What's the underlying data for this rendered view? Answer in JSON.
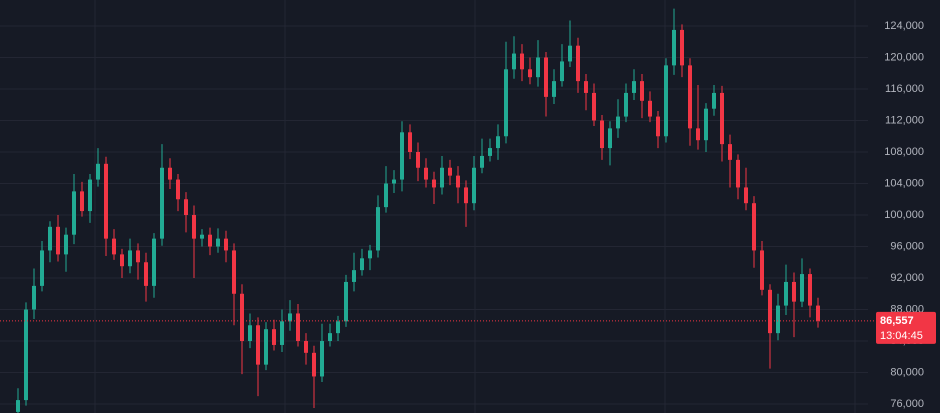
{
  "chart_data": {
    "type": "candlestick",
    "categories": [
      null,
      null,
      null,
      null,
      null,
      null,
      null,
      null,
      null,
      null,
      null,
      null,
      null,
      null,
      null,
      null,
      null,
      null,
      null,
      null,
      null,
      null,
      null,
      null,
      null,
      null,
      null,
      null,
      null,
      null,
      null,
      null,
      null,
      null,
      null,
      null,
      null,
      null,
      null,
      null,
      null,
      null,
      null,
      null,
      null,
      null,
      null,
      null,
      null,
      null,
      null,
      null,
      null,
      null,
      null,
      null,
      null,
      null,
      null,
      null,
      null,
      null,
      null,
      null,
      null,
      null,
      null,
      null,
      null,
      null,
      null,
      null,
      null,
      null,
      null,
      null,
      null,
      null,
      null,
      null,
      null,
      null,
      null,
      null,
      null,
      null,
      null,
      null,
      null,
      null,
      null,
      null,
      null,
      null,
      null,
      null,
      null,
      null,
      null,
      null,
      null
    ],
    "open": [
      75000,
      76500,
      88000,
      91000,
      95500,
      98500,
      95000,
      97500,
      103000,
      100500,
      104500,
      106500,
      97000,
      95000,
      93500,
      95500,
      94000,
      91000,
      97000,
      106000,
      104500,
      102000,
      100000,
      97000,
      97500,
      96000,
      97000,
      95500,
      90000,
      84000,
      86000,
      81000,
      85500,
      83500,
      86500,
      87500,
      84000,
      82500,
      79500,
      84000,
      85000,
      86500,
      91500,
      93000,
      94500,
      95500,
      101000,
      104000,
      104500,
      110500,
      108000,
      106000,
      104500,
      103500,
      106000,
      105000,
      103500,
      101500,
      106000,
      107500,
      108500,
      110000,
      118500,
      120500,
      118500,
      117500,
      120000,
      115000,
      117000,
      119500,
      121500,
      117000,
      115500,
      112000,
      108500,
      111000,
      112500,
      115500,
      117000,
      114500,
      112500,
      110000,
      119000,
      123500,
      119000,
      111000,
      109500,
      113500,
      115500,
      109000,
      107000,
      103500,
      101500,
      95500,
      90500,
      85000,
      88500,
      91500,
      89000,
      92500,
      88500
    ],
    "high": [
      78000,
      88900,
      93200,
      96700,
      99200,
      100000,
      98400,
      105200,
      104200,
      105200,
      108500,
      107400,
      98200,
      95700,
      97000,
      96400,
      95200,
      97700,
      109000,
      107200,
      105200,
      102900,
      101200,
      98200,
      98400,
      98300,
      98000,
      96400,
      91200,
      87500,
      87000,
      86400,
      86700,
      88000,
      89200,
      88700,
      85000,
      83400,
      86200,
      86200,
      87200,
      92400,
      95200,
      95700,
      96200,
      102500,
      106200,
      105700,
      111900,
      111500,
      109200,
      107200,
      105500,
      107500,
      107000,
      106200,
      104400,
      107500,
      109700,
      109700,
      111500,
      122000,
      122700,
      121700,
      120000,
      122200,
      120700,
      118500,
      121700,
      124700,
      122500,
      117900,
      116700,
      112700,
      111900,
      114700,
      116700,
      118500,
      117900,
      115700,
      113200,
      119900,
      126200,
      124200,
      119900,
      116500,
      114200,
      116500,
      116400,
      110200,
      107700,
      106000,
      102400,
      96700,
      91200,
      90000,
      93700,
      92700,
      94500,
      93200,
      89500
    ],
    "low": [
      74000,
      75800,
      86800,
      90300,
      94000,
      94100,
      92800,
      96300,
      99800,
      99000,
      103600,
      94800,
      94300,
      92000,
      92600,
      91800,
      89000,
      89500,
      96100,
      103300,
      100500,
      97800,
      92000,
      96000,
      94900,
      95200,
      94000,
      86000,
      79800,
      83100,
      77000,
      80300,
      82800,
      82600,
      85300,
      83300,
      81000,
      75500,
      78800,
      83300,
      84000,
      85800,
      90300,
      92300,
      93000,
      94600,
      100300,
      102800,
      103000,
      107100,
      104300,
      103500,
      101400,
      102600,
      103800,
      101500,
      98500,
      100600,
      105300,
      106800,
      107000,
      109100,
      117300,
      117000,
      116600,
      116300,
      112500,
      114100,
      116300,
      118800,
      115500,
      113300,
      111300,
      107000,
      106300,
      109800,
      111800,
      114600,
      112300,
      111800,
      108500,
      109200,
      117800,
      117500,
      108800,
      108300,
      108000,
      112600,
      106800,
      103500,
      102000,
      100600,
      93300,
      89800,
      80500,
      84100,
      87300,
      84500,
      88300,
      87000,
      85700
    ],
    "close": [
      76500,
      88000,
      91000,
      95500,
      98500,
      95000,
      97500,
      103000,
      100500,
      104500,
      106500,
      97000,
      95000,
      93500,
      95500,
      94000,
      91000,
      97000,
      106000,
      104500,
      102000,
      100000,
      97000,
      97500,
      96000,
      97000,
      95500,
      90000,
      84000,
      86000,
      81000,
      85500,
      83500,
      86500,
      87500,
      84000,
      82500,
      79500,
      84000,
      85000,
      86500,
      91500,
      93000,
      94500,
      95500,
      101000,
      104000,
      104500,
      110500,
      108000,
      106000,
      104500,
      103500,
      106000,
      105000,
      103500,
      101500,
      106000,
      107500,
      108500,
      110000,
      118500,
      120500,
      118500,
      117500,
      120000,
      115000,
      117000,
      119500,
      121500,
      117000,
      115500,
      112000,
      108500,
      111000,
      112500,
      115500,
      117000,
      114500,
      112500,
      110000,
      119000,
      123500,
      119000,
      111000,
      109500,
      113500,
      115500,
      109000,
      107000,
      103500,
      101500,
      95500,
      90500,
      85000,
      88500,
      91500,
      89000,
      92500,
      88500,
      86557
    ],
    "up_color": "#22ab94",
    "down_color": "#f23645",
    "ylim": [
      74860,
      127300
    ],
    "yticks": [
      {
        "value": 76000,
        "label": "76,000"
      },
      {
        "value": 80000,
        "label": "80,000"
      },
      {
        "value": 84000,
        "label": "84,000"
      },
      {
        "value": 88000,
        "label": "88,000"
      },
      {
        "value": 92000,
        "label": "92,000"
      },
      {
        "value": 96000,
        "label": "96,000"
      },
      {
        "value": 100000,
        "label": "100,000"
      },
      {
        "value": 104000,
        "label": "104,000"
      },
      {
        "value": 108000,
        "label": "108,000"
      },
      {
        "value": 112000,
        "label": "112,000"
      },
      {
        "value": 116000,
        "label": "116,000"
      },
      {
        "value": 120000,
        "label": "120,000"
      },
      {
        "value": 124000,
        "label": "124,000"
      }
    ],
    "grid": true,
    "current_price": {
      "value": 86557,
      "label": "86,557"
    },
    "countdown": "13:04:45"
  }
}
